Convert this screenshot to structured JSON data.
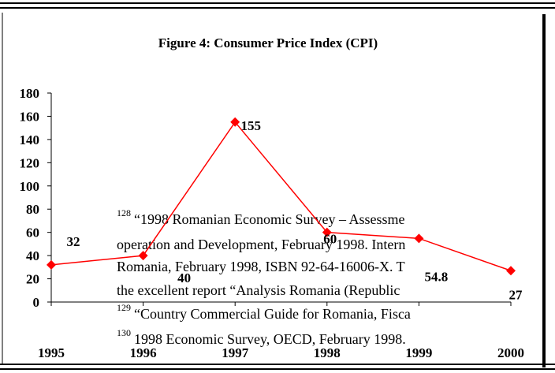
{
  "chart_data": {
    "type": "line",
    "title": "Figure 4:  Consumer Price Index (CPI)",
    "categories": [
      "1995",
      "1996",
      "1997",
      "1998",
      "1999",
      "2000"
    ],
    "series": [
      {
        "name": "CPI",
        "color": "#ff0000",
        "values": [
          32,
          40,
          155,
          60,
          54.8,
          27
        ]
      }
    ],
    "ylim": [
      0,
      180
    ],
    "yticks": [
      0,
      20,
      40,
      60,
      80,
      100,
      120,
      140,
      160,
      180
    ]
  },
  "footnotes": [
    {
      "number": "128",
      "lines": [
        "“1998 Romanian Economic Survey – Assessme",
        "operation and Development, February 1998.  Intern",
        "Romania, February 1998, ISBN 92-64-16006-X.  T",
        "the excellent report “Analysis Romania (Republic"
      ]
    },
    {
      "number": "129",
      "lines": [
        "“Country Commercial Guide for Romania, Fisca"
      ]
    },
    {
      "number": "130",
      "lines": [
        "1998 Economic Survey, OECD, February 1998."
      ]
    }
  ]
}
